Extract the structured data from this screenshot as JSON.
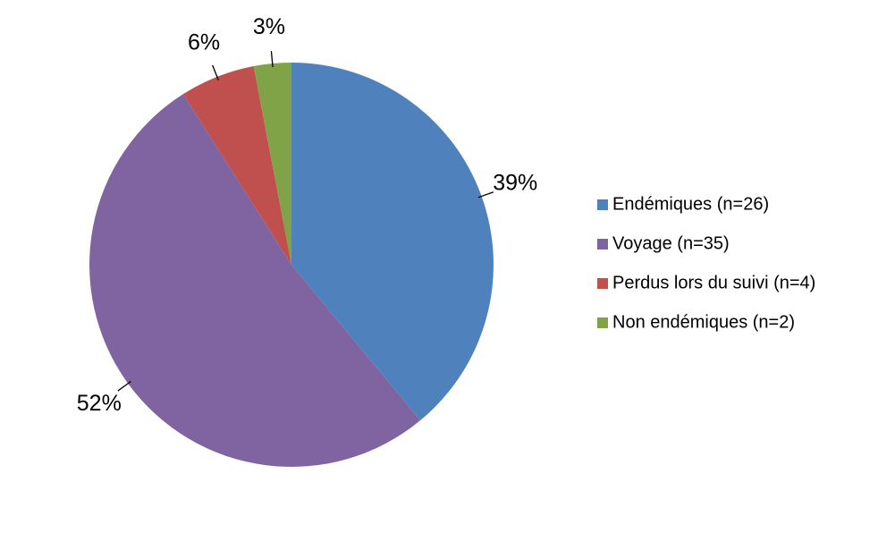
{
  "chart_data": {
    "type": "pie",
    "categories": [
      "Endémiques (n=26)",
      "Voyage (n=35)",
      "Perdus lors du suivi (n=4)",
      "Non endémiques (n=2)"
    ],
    "values": [
      39,
      52,
      6,
      3
    ],
    "value_labels": [
      "39%",
      "52%",
      "6%",
      "3%"
    ],
    "colors": [
      "#4f81bd",
      "#8064a2",
      "#c0504d",
      "#7fa346"
    ],
    "legend": "right"
  }
}
